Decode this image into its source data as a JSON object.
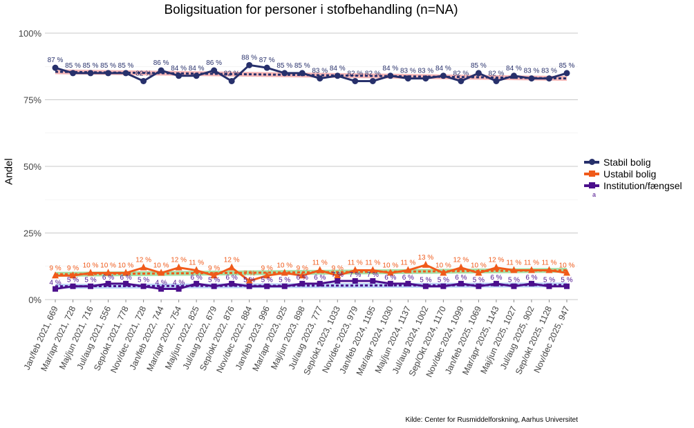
{
  "chart_data": {
    "type": "line",
    "title": "Boligsituation for personer i stofbehandling (n=NA)",
    "xlabel": "",
    "ylabel": "Andel",
    "ylim": [
      0,
      100
    ],
    "yticks": [
      "0%",
      "25%",
      "50%",
      "75%",
      "100%"
    ],
    "grid": true,
    "legend_position": "right",
    "legend_note": "a",
    "source": "Kilde: Center for Rusmiddelforskning, Aarhus Universitet",
    "categories": [
      "Jan/feb 2021, 669",
      "Mar/apr 2021, 728",
      "Maj/jun 2021, 716",
      "Jul/aug 2021, 556",
      "Sep/okt 2021, 778",
      "Nov/dec 2021, 728",
      "Jan/feb 2022, 744",
      "Mar/apr 2022, 754",
      "Maj/jun 2022, 825",
      "Jul/aug 2022, 679",
      "Sep/okt 2022, 876",
      "Nov/dec 2022, 884",
      "Jan/feb 2023, 996",
      "Mar/apr 2023, 925",
      "Maj/jun 2023, 898",
      "Jul/aug 2023, 777",
      "Sep/okt 2023, 1033",
      "Nov/dec 2023, 979",
      "Jan/feb 2024, 1195",
      "Mar/apr 2024, 1030",
      "Maj/jun 2024, 1137",
      "Jul/aug 2024, 1002",
      "Sep/Okt 2024, 1170",
      "Nov/dec 2024, 1099",
      "Jan/feb 2025, 1069",
      "Mar/apr 2025, 1143",
      "Maj/jun 2025, 1027",
      "Jul/aug 2025, 902",
      "Sep/okt 2025, 1128",
      "Nov/dec 2025, 947"
    ],
    "series": [
      {
        "name": "Stabil bolig",
        "color": "#27306b",
        "trend_color": "#f4a6a6",
        "marker": "circle",
        "trend": [
          85.5,
          83
        ],
        "values": [
          87,
          85,
          85,
          85,
          85,
          82,
          86,
          84,
          84,
          86,
          82,
          88,
          87,
          85,
          85,
          83,
          84,
          82,
          82,
          84,
          83,
          83,
          84,
          82,
          85,
          82,
          84,
          83,
          83,
          85
        ]
      },
      {
        "name": "Ustabil bolig",
        "color": "#f05a1a",
        "trend_color": "#8fd68f",
        "marker": "triangle",
        "trend": [
          9.5,
          11
        ],
        "values": [
          9,
          9,
          10,
          10,
          10,
          12,
          10,
          12,
          11,
          9,
          12,
          7,
          9,
          10,
          9,
          11,
          9,
          11,
          11,
          10,
          11,
          13,
          10,
          12,
          10,
          12,
          11,
          11,
          11,
          10
        ]
      },
      {
        "name": "Institution/fængsel",
        "color": "#4b0f8c",
        "trend_color": "#a9c8f5",
        "marker": "square",
        "trend": [
          5,
          5.5
        ],
        "values": [
          4,
          5,
          5,
          6,
          6,
          5,
          4,
          4,
          6,
          5,
          6,
          5,
          5,
          5,
          6,
          6,
          7,
          7,
          7,
          6,
          6,
          5,
          5,
          6,
          5,
          6,
          5,
          6,
          5,
          5
        ]
      }
    ]
  }
}
